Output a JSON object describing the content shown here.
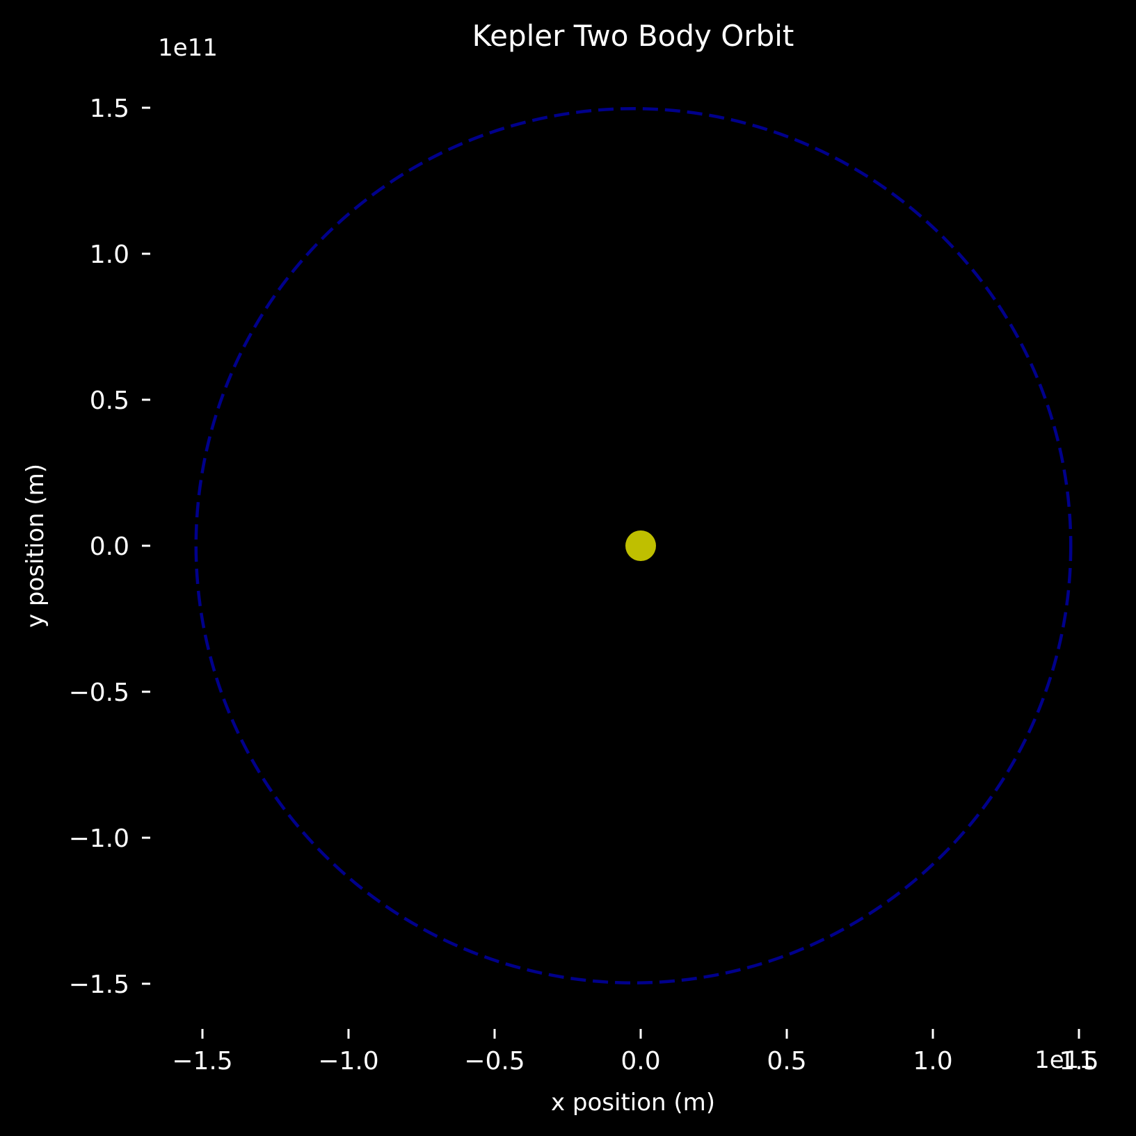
{
  "chart_data": {
    "type": "line",
    "title": "Kepler Two Body Orbit",
    "xlabel": "x position (m)",
    "ylabel": "y position (m)",
    "x_offset_label": "1e11",
    "y_offset_label": "1e11",
    "xlim": [
      -165000000000.0,
      160000000000.0
    ],
    "ylim": [
      -165000000000.0,
      160000000000.0
    ],
    "x_ticks": [
      -150000000000.0,
      -100000000000.0,
      -50000000000.0,
      0,
      50000000000.0,
      100000000000.0,
      150000000000.0
    ],
    "x_tick_labels": [
      "−1.5",
      "−1.0",
      "−0.5",
      "0.0",
      "0.5",
      "1.0",
      "1.5"
    ],
    "y_ticks": [
      150000000000.0,
      100000000000.0,
      50000000000.0,
      0,
      -50000000000.0,
      -100000000000.0,
      -150000000000.0
    ],
    "y_tick_labels": [
      "1.5",
      "1.0",
      "0.5",
      "0.0",
      "−0.5",
      "−1.0",
      "−1.5"
    ],
    "grid": false,
    "background_color": "#000000",
    "series": [
      {
        "kind": "ellipse",
        "center": [
          -2500000000.0,
          0
        ],
        "semi_axes": [
          149700000000.0,
          149700000000.0
        ],
        "color": "#00008b",
        "style": "dashed"
      },
      {
        "kind": "point",
        "x": [
          0
        ],
        "y": [
          0
        ],
        "color": "#bfbf00"
      }
    ]
  }
}
